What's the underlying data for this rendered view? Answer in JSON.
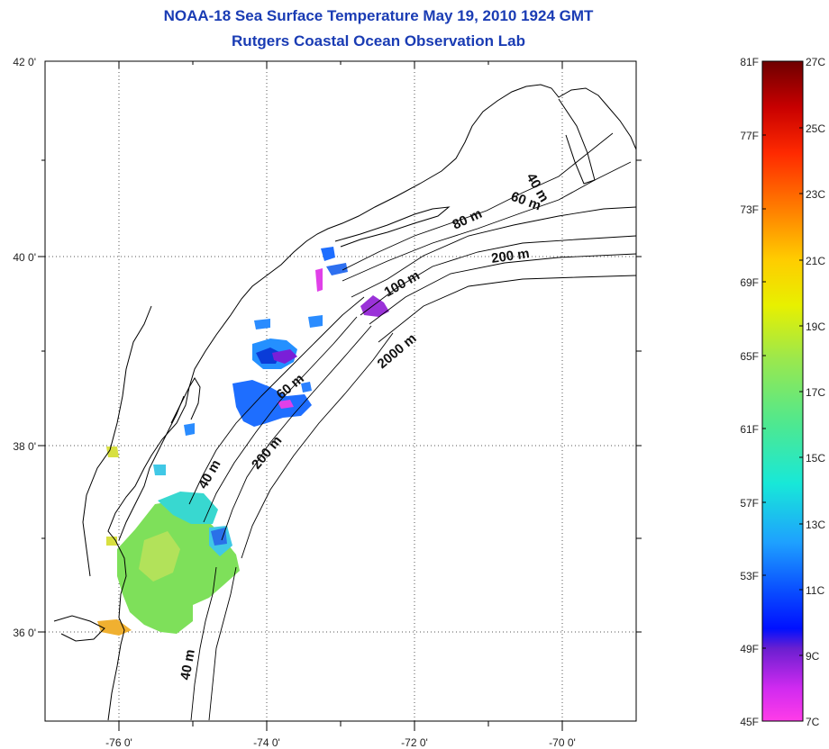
{
  "title": {
    "line1": "NOAA-18 Sea Surface Temperature May 19, 2010 1924 GMT",
    "line2": "Rutgers Coastal Ocean Observation Lab"
  },
  "map": {
    "longitude_labels": [
      "-76 0'",
      "-74 0'",
      "-72 0'",
      "-70 0'"
    ],
    "latitude_labels": [
      "42 0'",
      "40 0'",
      "38 0'",
      "36 0'"
    ],
    "depth_contour_labels": [
      "40 m",
      "60 m",
      "80 m",
      "200 m",
      "100 m",
      "2000 m",
      "60 m",
      "200 m",
      "40 m",
      "40 m"
    ],
    "grid": "dotted"
  },
  "colorbar": {
    "fahrenheit_labels": [
      "81F",
      "77F",
      "73F",
      "69F",
      "65F",
      "61F",
      "57F",
      "53F",
      "49F",
      "45F"
    ],
    "celsius_labels": [
      "27C",
      "25C",
      "23C",
      "21C",
      "19C",
      "17C",
      "15C",
      "13C",
      "11C",
      "9C",
      "7C"
    ],
    "colors": [
      "#7a0000",
      "#c80000",
      "#ff2a00",
      "#ff8c00",
      "#ffd800",
      "#e8f000",
      "#7ee05a",
      "#18e8c8",
      "#1ea0ff",
      "#0010ff",
      "#7a1fd8",
      "#ff3ce8"
    ]
  }
}
